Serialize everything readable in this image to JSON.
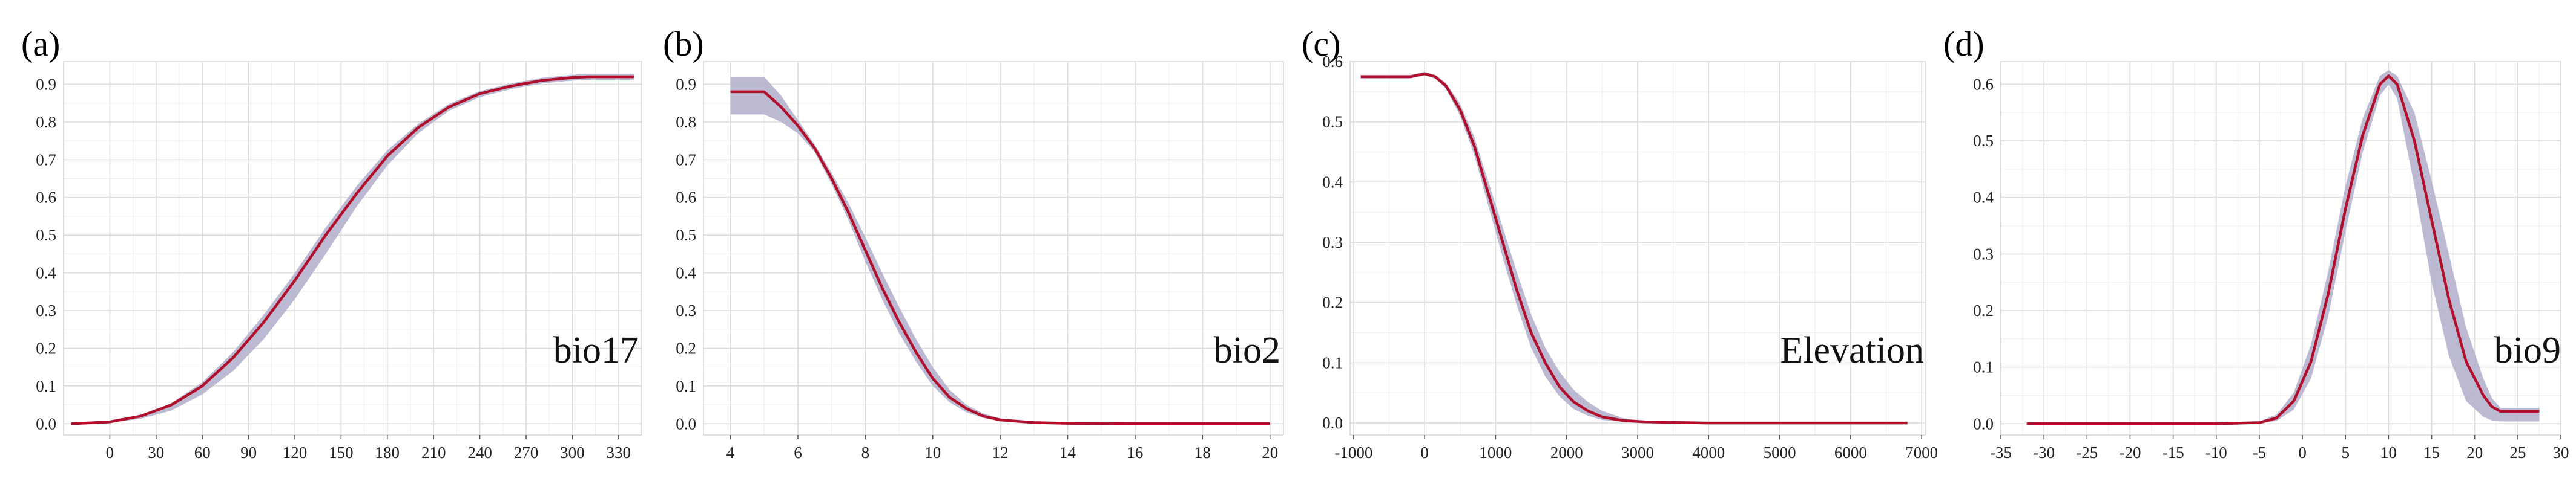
{
  "chart_data": [
    {
      "panel": "(a)",
      "type": "line",
      "variable_label": "bio17",
      "x_ticks": [
        0,
        30,
        60,
        90,
        120,
        150,
        180,
        210,
        240,
        270,
        300,
        330
      ],
      "y_ticks": [
        0.0,
        0.1,
        0.2,
        0.3,
        0.4,
        0.5,
        0.6,
        0.7,
        0.8,
        0.9
      ],
      "xlim": [
        -30,
        345
      ],
      "ylim": [
        -0.03,
        0.96
      ],
      "grid": true,
      "x": [
        -25,
        0,
        20,
        40,
        60,
        80,
        100,
        120,
        140,
        160,
        180,
        200,
        220,
        240,
        260,
        280,
        300,
        310,
        340
      ],
      "mean": [
        0.0,
        0.005,
        0.02,
        0.05,
        0.1,
        0.175,
        0.27,
        0.38,
        0.5,
        0.61,
        0.71,
        0.785,
        0.84,
        0.875,
        0.895,
        0.91,
        0.918,
        0.92,
        0.92
      ],
      "upper": [
        0.0,
        0.006,
        0.022,
        0.055,
        0.11,
        0.19,
        0.29,
        0.4,
        0.52,
        0.63,
        0.725,
        0.795,
        0.848,
        0.882,
        0.902,
        0.917,
        0.925,
        0.928,
        0.928
      ],
      "lower": [
        0.0,
        0.003,
        0.013,
        0.035,
        0.078,
        0.14,
        0.225,
        0.33,
        0.45,
        0.575,
        0.685,
        0.77,
        0.83,
        0.866,
        0.887,
        0.902,
        0.91,
        0.912,
        0.912
      ]
    },
    {
      "panel": "(b)",
      "type": "line",
      "variable_label": "bio2",
      "x_ticks": [
        4,
        6,
        8,
        10,
        12,
        14,
        16,
        18,
        20
      ],
      "y_ticks": [
        0.0,
        0.1,
        0.2,
        0.3,
        0.4,
        0.5,
        0.6,
        0.7,
        0.8,
        0.9
      ],
      "xlim": [
        3.2,
        20.4
      ],
      "ylim": [
        -0.03,
        0.96
      ],
      "grid": true,
      "x": [
        4,
        5,
        5.5,
        6,
        6.5,
        7,
        7.5,
        8,
        8.5,
        9,
        9.5,
        10,
        10.5,
        11,
        11.5,
        12,
        13,
        14,
        16,
        20
      ],
      "mean": [
        0.88,
        0.88,
        0.84,
        0.79,
        0.73,
        0.65,
        0.56,
        0.46,
        0.36,
        0.27,
        0.19,
        0.12,
        0.07,
        0.04,
        0.02,
        0.01,
        0.003,
        0.001,
        0.0,
        0.0
      ],
      "upper": [
        0.92,
        0.92,
        0.87,
        0.805,
        0.74,
        0.665,
        0.585,
        0.495,
        0.4,
        0.31,
        0.225,
        0.15,
        0.09,
        0.05,
        0.027,
        0.014,
        0.004,
        0.001,
        0.0,
        0.0
      ],
      "lower": [
        0.82,
        0.82,
        0.8,
        0.77,
        0.72,
        0.635,
        0.54,
        0.43,
        0.33,
        0.24,
        0.165,
        0.1,
        0.057,
        0.03,
        0.015,
        0.007,
        0.002,
        0.0,
        0.0,
        0.0
      ]
    },
    {
      "panel": "(c)",
      "type": "line",
      "variable_label": "Elevation",
      "x_ticks": [
        -1000,
        0,
        1000,
        2000,
        3000,
        4000,
        5000,
        6000,
        7000
      ],
      "y_ticks": [
        0.0,
        0.1,
        0.2,
        0.3,
        0.4,
        0.5,
        0.6
      ],
      "xlim": [
        -1050,
        7050
      ],
      "ylim": [
        -0.02,
        0.6
      ],
      "grid": true,
      "x": [
        -900,
        -200,
        0,
        150,
        300,
        500,
        700,
        900,
        1100,
        1300,
        1500,
        1700,
        1900,
        2100,
        2300,
        2500,
        2800,
        3100,
        3500,
        4000,
        5000,
        6000,
        6800
      ],
      "mean": [
        0.575,
        0.575,
        0.58,
        0.575,
        0.56,
        0.52,
        0.46,
        0.38,
        0.3,
        0.22,
        0.15,
        0.1,
        0.06,
        0.035,
        0.02,
        0.01,
        0.004,
        0.002,
        0.001,
        0.0,
        0.0,
        0.0,
        0.0
      ],
      "upper": [
        0.578,
        0.578,
        0.583,
        0.578,
        0.565,
        0.53,
        0.475,
        0.4,
        0.325,
        0.25,
        0.18,
        0.125,
        0.085,
        0.055,
        0.035,
        0.02,
        0.008,
        0.003,
        0.001,
        0.0,
        0.0,
        0.0,
        0.0
      ],
      "lower": [
        0.572,
        0.572,
        0.577,
        0.572,
        0.555,
        0.51,
        0.445,
        0.36,
        0.275,
        0.195,
        0.125,
        0.077,
        0.044,
        0.023,
        0.012,
        0.005,
        0.002,
        0.001,
        0.0,
        0.0,
        0.0,
        0.0,
        0.0
      ]
    },
    {
      "panel": "(d)",
      "type": "line",
      "variable_label": "bio9",
      "x_ticks": [
        -35,
        -30,
        -25,
        -20,
        -15,
        -10,
        -5,
        0,
        5,
        10,
        15,
        20,
        25,
        30
      ],
      "y_ticks": [
        0.0,
        0.1,
        0.2,
        0.3,
        0.4,
        0.5,
        0.6
      ],
      "xlim": [
        -35,
        30
      ],
      "ylim": [
        -0.02,
        0.64
      ],
      "grid": true,
      "x": [
        -32,
        -10,
        -5,
        -3,
        -1,
        1,
        3,
        5,
        7,
        9,
        10,
        11,
        13,
        15,
        17,
        19,
        21,
        22,
        23,
        27.5
      ],
      "mean": [
        0.0,
        0.0,
        0.002,
        0.01,
        0.04,
        0.11,
        0.23,
        0.38,
        0.51,
        0.6,
        0.615,
        0.6,
        0.5,
        0.36,
        0.22,
        0.11,
        0.05,
        0.03,
        0.022,
        0.022
      ],
      "upper": [
        0.0,
        0.0,
        0.004,
        0.016,
        0.055,
        0.14,
        0.27,
        0.42,
        0.54,
        0.615,
        0.625,
        0.615,
        0.55,
        0.43,
        0.3,
        0.17,
        0.08,
        0.045,
        0.028,
        0.028
      ],
      "lower": [
        0.0,
        0.0,
        0.0,
        0.005,
        0.025,
        0.08,
        0.19,
        0.34,
        0.48,
        0.58,
        0.6,
        0.575,
        0.42,
        0.25,
        0.12,
        0.04,
        0.012,
        0.006,
        0.004,
        0.004
      ]
    }
  ]
}
